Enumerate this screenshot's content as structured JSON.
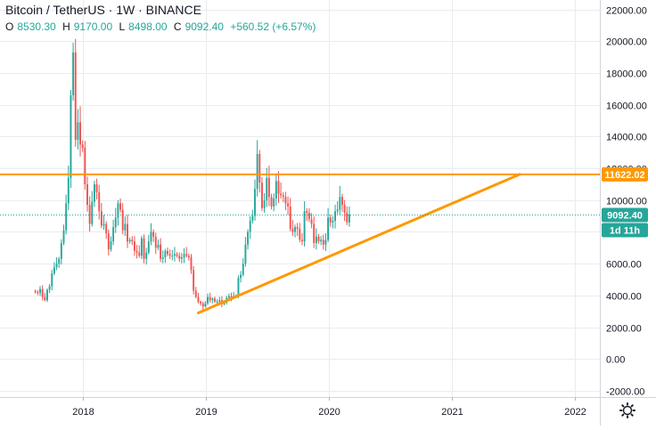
{
  "header": {
    "title": "Bitcoin / TetherUS · 1W · BINANCE",
    "ohlc": {
      "o_key": "O",
      "o_val": "8530.30",
      "h_key": "H",
      "h_val": "9170.00",
      "l_key": "L",
      "l_val": "8498.00",
      "c_key": "C",
      "c_val": "9092.40",
      "change": "+560.52 (+6.57%)"
    }
  },
  "colors": {
    "up": "#26a69a",
    "down": "#ef5350",
    "horizontal_line": "#ff9800",
    "trendline": "#ff9800",
    "grid": "#e9ecf0",
    "axis_text": "#131722"
  },
  "chart_data": {
    "type": "candlestick",
    "symbol": "BTCUSDT",
    "interval": "1W",
    "exchange": "BINANCE",
    "x_axis": {
      "tick_labels": [
        "2018",
        "2019",
        "2020",
        "2021",
        "2022"
      ],
      "range": [
        "2017-05-01",
        "2022-03-15"
      ]
    },
    "y_axis": {
      "tick_labels": [
        "-2000.00",
        "0.00",
        "2000.00",
        "4000.00",
        "6000.00",
        "8000.00",
        "10000.00",
        "12000.00",
        "14000.00",
        "16000.00",
        "18000.00",
        "20000.00",
        "22000.00"
      ],
      "range": [
        -2400,
        22600
      ],
      "grid": true
    },
    "series": [
      {
        "start_date": "2017-08-14",
        "close": [
          4200,
          4150,
          4400,
          3900,
          3700,
          4350,
          4580,
          5380,
          5770,
          6000,
          6300,
          7300,
          8100,
          9800,
          11400,
          16600,
          19300,
          13800,
          14900,
          13500,
          13300,
          11000,
          9700,
          8500,
          9900,
          11000,
          10500,
          9300,
          8400,
          8500,
          7900,
          6900,
          7400,
          8300,
          8900,
          9800,
          9400,
          8100,
          8500,
          7400,
          7500,
          7400,
          6800,
          6700,
          6500,
          7600,
          6300,
          6700,
          7400,
          8000,
          7700,
          7000,
          7200,
          6300,
          6400,
          6800,
          6600,
          6500,
          6500,
          6600,
          6500,
          6300,
          6400,
          6600,
          6500,
          6400,
          5600,
          4300,
          3900,
          3600,
          3500,
          3300,
          3500,
          3900,
          3700,
          3800,
          3600,
          3600,
          3700,
          3450,
          3550,
          3850,
          3950,
          3850,
          3950,
          4000,
          5100,
          5300,
          6000,
          7200,
          8000,
          8700,
          9000,
          10700,
          12900,
          11100,
          9500,
          10000,
          11400,
          10200,
          9600,
          10100,
          11200,
          10400,
          10300,
          10200,
          9800,
          9600,
          8200,
          8000,
          8300,
          8200,
          7500,
          7400,
          9300,
          9200,
          8800,
          8500,
          7300,
          7700,
          7400,
          7500,
          7200,
          7500,
          8900,
          8600,
          8700,
          9300,
          9400,
          10200,
          9700,
          9200,
          8600,
          9092
        ]
      }
    ],
    "horizontal_lines": [
      {
        "price": 11622.02,
        "label": "11622.02"
      }
    ],
    "last_price": {
      "value": 9092.4,
      "label": "9092.40"
    },
    "countdown_label": "1d 11h",
    "trendline": {
      "start": {
        "date": "2018-12-10",
        "price": 2900
      },
      "end": {
        "date": "2021-07-20",
        "price": 11622.02
      }
    }
  }
}
